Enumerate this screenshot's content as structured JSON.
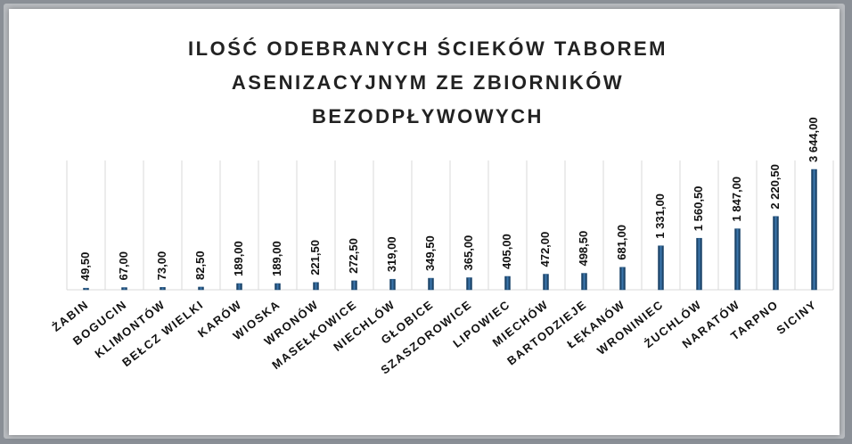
{
  "chart_data": {
    "type": "bar",
    "title_lines": [
      "ILOŚĆ ODEBRANYCH ŚCIEKÓW TABOREM",
      "ASENIZACYJNYM ZE ZBIORNIKÓW",
      "BEZODPŁYWOWYCH"
    ],
    "categories": [
      "ŻABIN",
      "BOGUCIN",
      "KLIMONTÓW",
      "BEŁCZ WIELKI",
      "KARÓW",
      "WIOSKA",
      "WRONÓW",
      "MASEŁKOWICE",
      "NIECHLÓW",
      "GŁOBICE",
      "SZASZOROWICE",
      "LIPOWIEC",
      "MIECHÓW",
      "BARTODZIEJE",
      "ŁĘKANÓW",
      "WRONINIEC",
      "ŻUCHLÓW",
      "NARATÓW",
      "TARPNO",
      "SICINY"
    ],
    "values": [
      49.5,
      67,
      73,
      82.5,
      189,
      189,
      221.5,
      272.5,
      319,
      349.5,
      365,
      405,
      472,
      498.5,
      681,
      1331,
      1560.5,
      1847,
      2220.5,
      3644
    ],
    "value_labels": [
      "49,50",
      "67,00",
      "73,00",
      "82,50",
      "189,00",
      "189,00",
      "221,50",
      "272,50",
      "319,00",
      "349,50",
      "365,00",
      "405,00",
      "472,00",
      "498,50",
      "681,00",
      "1 331,00",
      "1 560,50",
      "1 847,00",
      "2 220,50",
      "3 644,00"
    ],
    "color": "#1f4e79"
  }
}
